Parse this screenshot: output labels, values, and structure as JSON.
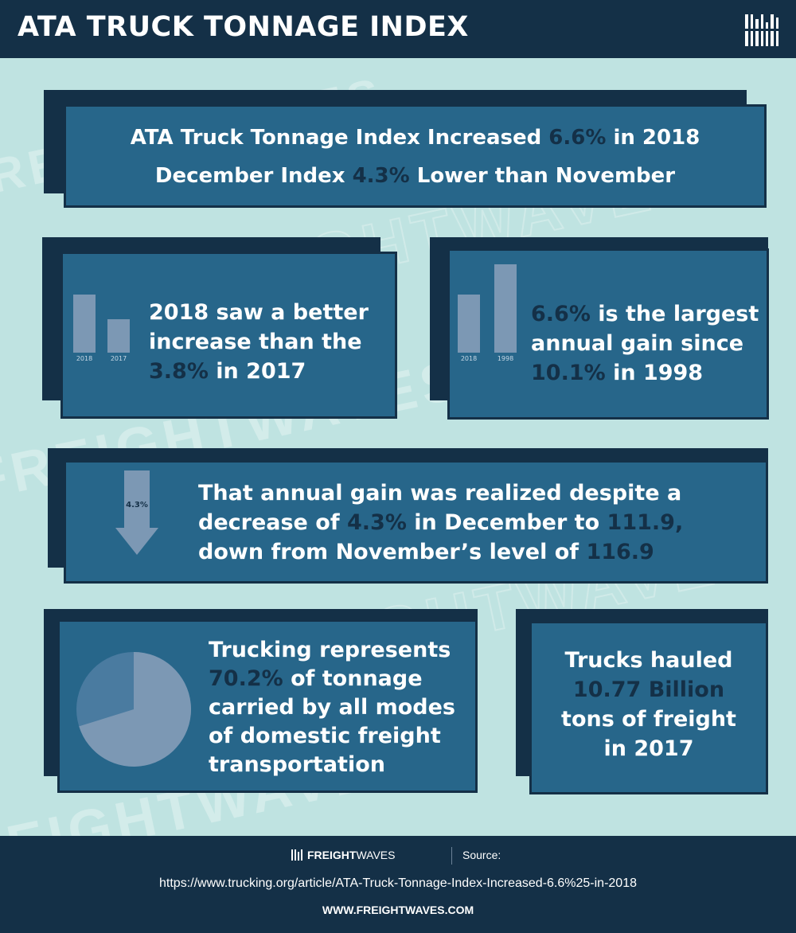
{
  "header": {
    "title": "ATA TRUCK TONNAGE INDEX"
  },
  "watermark": {
    "text": "FREIGHTWAVES"
  },
  "headline": {
    "line1_pre": "ATA Truck Tonnage Index Increased ",
    "line1_hl": "6.6%",
    "line1_post": " in 2018",
    "line2_pre": "December Index ",
    "line2_hl": "4.3%",
    "line2_post": " Lower than November"
  },
  "card_2017": {
    "line1": "2018 saw a better",
    "line2": "increase than the",
    "line3_hl": "3.8%",
    "line3_post": " in 2017",
    "bars": [
      {
        "label": "2018",
        "value": 6.6
      },
      {
        "label": "2017",
        "value": 3.8
      }
    ]
  },
  "card_1998": {
    "line1_hl": "6.6%",
    "line1_post": " is the largest",
    "line2": "annual gain since",
    "line3_hl": "10.1%",
    "line3_post": " in 1998",
    "bars": [
      {
        "label": "2018",
        "value": 6.6
      },
      {
        "label": "1998",
        "value": 10.1
      }
    ]
  },
  "card_december": {
    "arrow_label": "4.3%",
    "line1": "That annual gain was realized despite a",
    "line2_pre": "decrease of ",
    "line2_hl1": "4.3%",
    "line2_mid": " in December to ",
    "line2_hl2": "111.9,",
    "line3_pre": "down from November’s level of ",
    "line3_hl": "116.9"
  },
  "card_share": {
    "line1": "Trucking represents",
    "line2_hl": "70.2%",
    "line2_post": " of tonnage",
    "line3": "carried by all modes",
    "line4": "of domestic freight",
    "line5": "transportation",
    "pie_value": 70.2
  },
  "card_hauled": {
    "line1": "Trucks hauled",
    "line2_hl": "10.77 Billion",
    "line3": "tons of freight",
    "line4": "in 2017"
  },
  "footer": {
    "brand_bold": "FREIGHT",
    "brand_light": "WAVES",
    "source_label": "Source:",
    "url": "https://www.trucking.org/article/ATA-Truck-Tonnage-Index-Increased-6.6%25-in-2018",
    "site": "WWW.FREIGHTWAVES.COM"
  },
  "colors": {
    "background": "#bfe3e1",
    "dark_navy": "#143047",
    "panel_blue": "#27668a",
    "muted_bar": "#7c98b4",
    "highlight_text": "#143047"
  }
}
